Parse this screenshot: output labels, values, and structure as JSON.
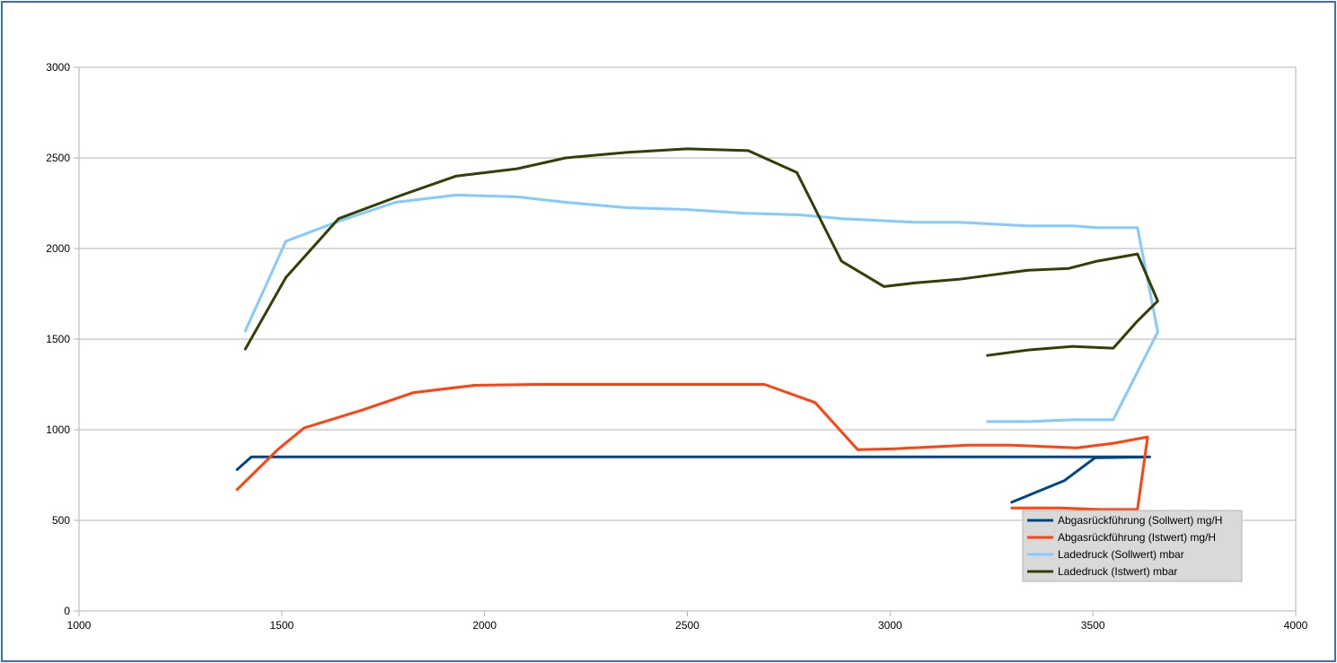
{
  "chart_data": {
    "type": "line",
    "title": "",
    "xlabel": "",
    "ylabel": "",
    "xlim": [
      1000,
      4000
    ],
    "ylim": [
      0,
      3000
    ],
    "x_ticks": [
      "1000",
      "1500",
      "2000",
      "2500",
      "3000",
      "3500",
      "4000"
    ],
    "y_ticks": [
      "0",
      "500",
      "1000",
      "1500",
      "2000",
      "2500",
      "3000"
    ],
    "grid": "horizontal",
    "legend_position": "bottom-right",
    "series": [
      {
        "name": "Abgasrückführung (Sollwert)  mg/H",
        "color": "#004586",
        "points": [
          [
            1390,
            780
          ],
          [
            1425,
            850
          ],
          [
            2000,
            850
          ],
          [
            2500,
            850
          ],
          [
            3000,
            850
          ],
          [
            3640,
            850
          ],
          [
            3505,
            845
          ],
          [
            3430,
            720
          ],
          [
            3300,
            600
          ]
        ]
      },
      {
        "name": "Abgasrückführung (Istwert)  mg/H",
        "color": "#ff420e",
        "points": [
          [
            1390,
            670
          ],
          [
            1490,
            890
          ],
          [
            1555,
            1010
          ],
          [
            1700,
            1110
          ],
          [
            1825,
            1205
          ],
          [
            1975,
            1245
          ],
          [
            2125,
            1250
          ],
          [
            2500,
            1250
          ],
          [
            2690,
            1250
          ],
          [
            2815,
            1150
          ],
          [
            2920,
            890
          ],
          [
            3010,
            895
          ],
          [
            3190,
            915
          ],
          [
            3300,
            915
          ],
          [
            3460,
            900
          ],
          [
            3550,
            925
          ],
          [
            3635,
            960
          ],
          [
            3610,
            560
          ],
          [
            3520,
            560
          ],
          [
            3420,
            568
          ],
          [
            3300,
            568
          ]
        ]
      },
      {
        "name": "Ladedruck (Sollwert)  mbar",
        "color": "#83caff",
        "points": [
          [
            1410,
            1545
          ],
          [
            1510,
            2040
          ],
          [
            1640,
            2150
          ],
          [
            1780,
            2255
          ],
          [
            1930,
            2295
          ],
          [
            2080,
            2285
          ],
          [
            2200,
            2255
          ],
          [
            2350,
            2225
          ],
          [
            2500,
            2215
          ],
          [
            2640,
            2195
          ],
          [
            2780,
            2185
          ],
          [
            2880,
            2165
          ],
          [
            3060,
            2145
          ],
          [
            3170,
            2145
          ],
          [
            3340,
            2125
          ],
          [
            3450,
            2125
          ],
          [
            3510,
            2115
          ],
          [
            3610,
            2115
          ],
          [
            3660,
            1540
          ],
          [
            3550,
            1055
          ],
          [
            3450,
            1055
          ],
          [
            3340,
            1045
          ],
          [
            3240,
            1045
          ]
        ]
      },
      {
        "name": "Ladedruck (Istwert)  mbar",
        "color": "#314004",
        "points": [
          [
            1410,
            1445
          ],
          [
            1510,
            1840
          ],
          [
            1640,
            2165
          ],
          [
            1790,
            2290
          ],
          [
            1930,
            2400
          ],
          [
            2080,
            2440
          ],
          [
            2200,
            2500
          ],
          [
            2350,
            2530
          ],
          [
            2500,
            2550
          ],
          [
            2650,
            2540
          ],
          [
            2770,
            2420
          ],
          [
            2880,
            1930
          ],
          [
            2985,
            1790
          ],
          [
            3060,
            1810
          ],
          [
            3170,
            1830
          ],
          [
            3270,
            1860
          ],
          [
            3340,
            1880
          ],
          [
            3440,
            1890
          ],
          [
            3510,
            1930
          ],
          [
            3610,
            1970
          ],
          [
            3660,
            1710
          ],
          [
            3610,
            1600
          ],
          [
            3550,
            1450
          ],
          [
            3450,
            1460
          ],
          [
            3340,
            1440
          ],
          [
            3240,
            1410
          ]
        ]
      }
    ]
  }
}
